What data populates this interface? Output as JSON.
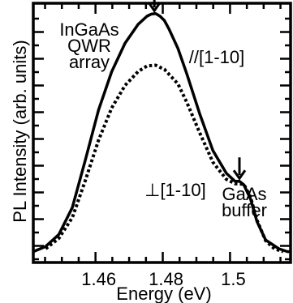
{
  "chart_data": {
    "type": "line",
    "title": "",
    "xlabel": "Energy (eV)",
    "ylabel": "PL Intensity (arb. units)",
    "xlim": [
      1.4415,
      1.518
    ],
    "ylim": [
      0,
      1.0
    ],
    "x_ticks": [
      1.46,
      1.48,
      1.5
    ],
    "x_tick_labels": [
      "1.46",
      "1.48",
      "1.5"
    ],
    "y_ticks_visible": false,
    "grid": false,
    "series": [
      {
        "name": "//[1-10]",
        "style": "solid",
        "x": [
          1.4415,
          1.4452,
          1.4491,
          1.4531,
          1.457,
          1.4609,
          1.4648,
          1.4688,
          1.4727,
          1.4753,
          1.4766,
          1.4779,
          1.4792,
          1.4805,
          1.4818,
          1.4845,
          1.4871,
          1.491,
          1.4949,
          1.4989,
          1.5015,
          1.5028,
          1.5041,
          1.5061,
          1.508,
          1.5106,
          1.5145,
          1.5171,
          1.518
        ],
        "y": [
          0.042,
          0.062,
          0.108,
          0.212,
          0.396,
          0.588,
          0.736,
          0.846,
          0.919,
          0.95,
          0.958,
          0.96,
          0.95,
          0.933,
          0.902,
          0.826,
          0.729,
          0.573,
          0.432,
          0.344,
          0.313,
          0.313,
          0.3,
          0.245,
          0.158,
          0.087,
          0.053,
          0.042,
          0.042
        ]
      },
      {
        "name": "⊥[1-10]",
        "style": "dotted",
        "x": [
          1.4452,
          1.4491,
          1.4531,
          1.457,
          1.4609,
          1.4648,
          1.4688,
          1.4727,
          1.4753,
          1.4779,
          1.4805,
          1.4845,
          1.4871,
          1.491,
          1.4949,
          1.4989,
          1.5015,
          1.5041,
          1.5061,
          1.508,
          1.5106,
          1.5132,
          1.5158
        ],
        "y": [
          0.053,
          0.093,
          0.173,
          0.317,
          0.472,
          0.596,
          0.683,
          0.737,
          0.758,
          0.761,
          0.745,
          0.689,
          0.619,
          0.5,
          0.387,
          0.321,
          0.304,
          0.302,
          0.252,
          0.163,
          0.084,
          0.053,
          0.042
        ]
      }
    ],
    "annotations": [
      {
        "lines": [
          "InGaAs",
          "QWR",
          "array"
        ],
        "arrow_to": [
          1.4775,
          0.965
        ]
      },
      {
        "lines": [
          "//[1-10]"
        ]
      },
      {
        "lines": [
          "GaAs",
          "buffer"
        ],
        "arrow_to": [
          1.5028,
          0.318
        ]
      },
      {
        "lines": [
          "⊥[1-10]"
        ]
      }
    ]
  }
}
